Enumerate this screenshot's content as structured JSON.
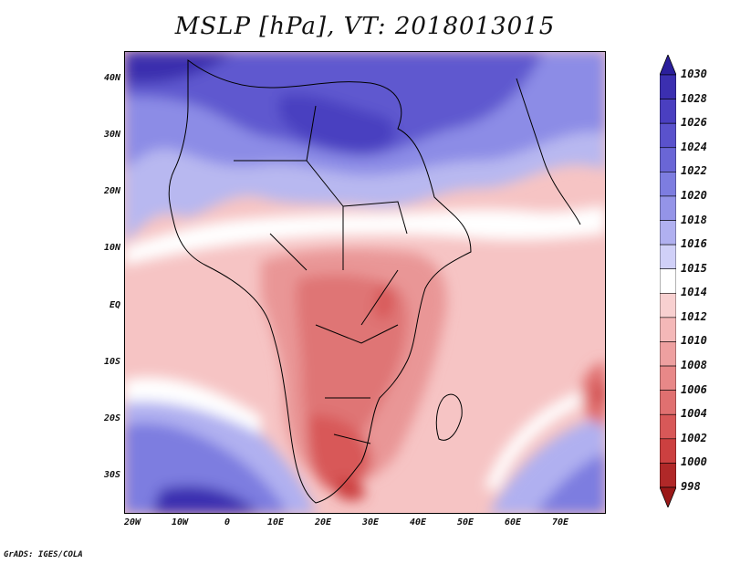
{
  "title": "MSLP [hPa], VT: 2018013015",
  "footer": "GrADS: IGES/COLA",
  "lat_labels": [
    "40N",
    "30N",
    "20N",
    "10N",
    "EQ",
    "10S",
    "20S",
    "30S"
  ],
  "lon_labels": [
    "20W",
    "10W",
    "0",
    "10E",
    "20E",
    "30E",
    "40E",
    "50E",
    "60E",
    "70E"
  ],
  "colorbar": {
    "levels": [
      "1030",
      "1028",
      "1026",
      "1024",
      "1022",
      "1020",
      "1018",
      "1016",
      "1015",
      "1014",
      "1012",
      "1010",
      "1008",
      "1006",
      "1004",
      "1002",
      "1000",
      "998"
    ],
    "colors": [
      "#2b1f9c",
      "#3b2fb0",
      "#4a3fc0",
      "#5a52cc",
      "#6a66d6",
      "#7d7de0",
      "#9494e8",
      "#b0b0f0",
      "#d0d0f8",
      "#ffffff",
      "#f8d0d0",
      "#f4b8b8",
      "#eea0a0",
      "#e88888",
      "#e07070",
      "#d85858",
      "#cc4040",
      "#b02828",
      "#9a1818"
    ]
  }
}
